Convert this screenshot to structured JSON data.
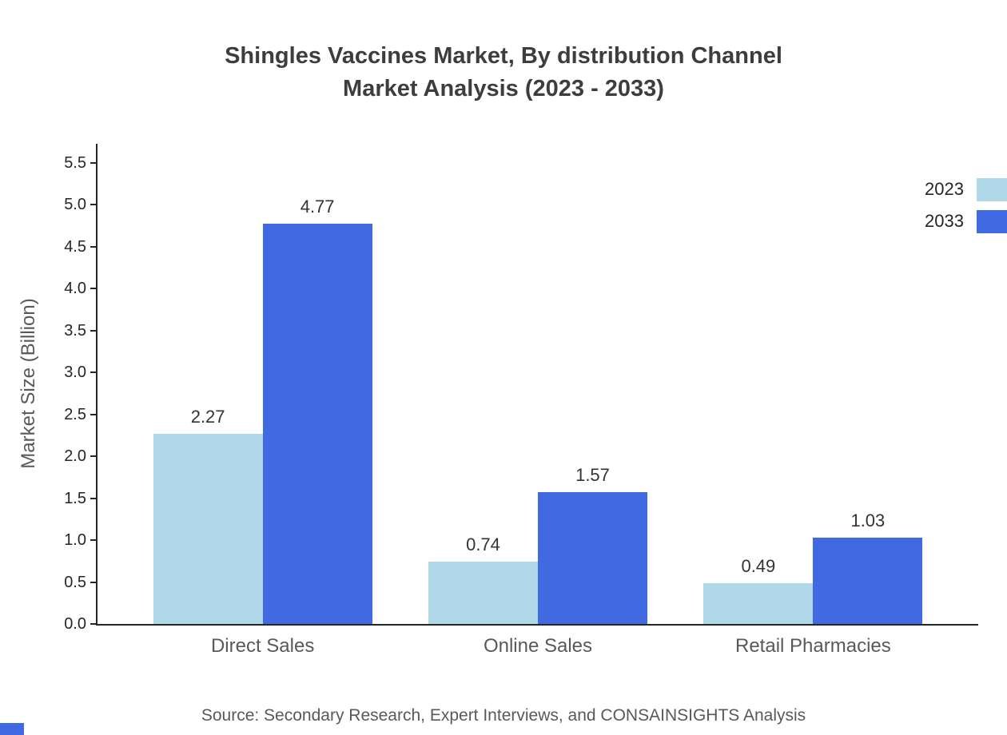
{
  "chart_data": {
    "type": "bar",
    "title": "Shingles Vaccines Market, By distribution Channel",
    "subtitle": "Market Analysis (2023 - 2033)",
    "categories": [
      "Direct Sales",
      "Online Sales",
      "Retail Pharmacies"
    ],
    "series": [
      {
        "name": "2023",
        "color": "#b0d8e8",
        "values": [
          2.27,
          0.74,
          0.49
        ]
      },
      {
        "name": "2033",
        "color": "#4169e1",
        "values": [
          4.77,
          1.57,
          1.03
        ]
      }
    ],
    "xlabel": "",
    "ylabel": "Market Size (Billion)",
    "ylim": [
      0,
      5.5
    ],
    "ytick_step": 0.5,
    "yticks": [
      "0.0",
      "0.5",
      "1.0",
      "1.5",
      "2.0",
      "2.5",
      "3.0",
      "3.5",
      "4.0",
      "4.5",
      "5.0",
      "5.5"
    ],
    "grid": false,
    "legend_position": "top-right"
  },
  "source_note": "Source: Secondary Research, Expert Interviews, and CONSAINSIGHTS Analysis",
  "colors": {
    "accent": "#4169e1",
    "title_text": "#3d3d3d",
    "axis_text": "#262626",
    "muted_text": "#595959"
  }
}
